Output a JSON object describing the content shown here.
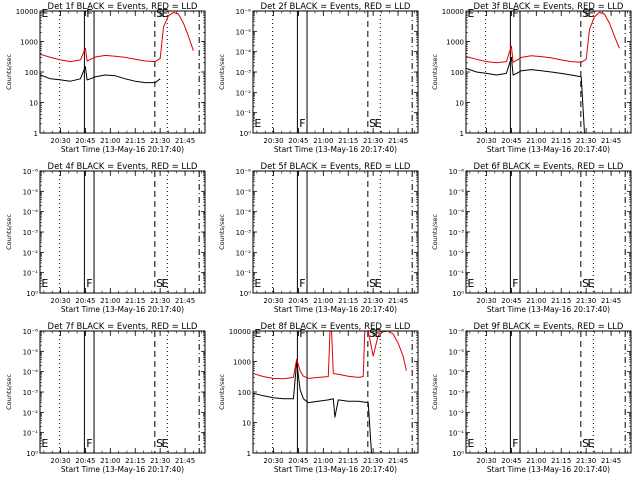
{
  "figure": {
    "background": "#ffffff",
    "series_colors": {
      "Events": "#000000",
      "LLD": "#e00000"
    }
  },
  "chart_data": [
    {
      "type": "line",
      "title": "Det 1f BLACK = Events, RED = LLD",
      "xlabel": "Start Time (13-May-16 20:17:40)",
      "ylabel": "Counts/sec",
      "xticks": [
        "20:30",
        "20:45",
        "21:00",
        "21:15",
        "21:30",
        "21:45"
      ],
      "yscale": "log",
      "ylim": [
        1,
        10000
      ],
      "yticks": [
        "1",
        "10",
        "100",
        "1000",
        "10000"
      ],
      "markers": [
        "E",
        "F",
        "S",
        "E"
      ],
      "series": [
        {
          "name": "Events",
          "x": [
            "20:18",
            "20:24",
            "20:30",
            "20:36",
            "20:42",
            "20:45",
            "20:46",
            "20:48",
            "20:51",
            "20:57",
            "21:03",
            "21:09",
            "21:15",
            "21:21",
            "21:27",
            "21:30"
          ],
          "values": [
            80,
            60,
            55,
            50,
            60,
            150,
            55,
            60,
            70,
            80,
            75,
            60,
            50,
            45,
            45,
            60
          ]
        },
        {
          "name": "LLD",
          "x": [
            "20:18",
            "20:24",
            "20:30",
            "20:36",
            "20:42",
            "20:45",
            "20:46",
            "20:48",
            "20:51",
            "20:57",
            "21:03",
            "21:09",
            "21:15",
            "21:21",
            "21:27",
            "21:30",
            "21:32",
            "21:35",
            "21:38",
            "21:41",
            "21:44",
            "21:47",
            "21:50"
          ],
          "values": [
            380,
            300,
            250,
            220,
            250,
            600,
            230,
            260,
            310,
            350,
            330,
            300,
            260,
            230,
            220,
            280,
            3000,
            7000,
            9000,
            8000,
            4000,
            1500,
            500
          ]
        }
      ]
    },
    {
      "type": "line",
      "title": "Det 2f BLACK = Events, RED = LLD",
      "xlabel": "Start Time (13-May-16 20:17:40)",
      "ylabel": "Counts/sec",
      "xticks": [
        "20:30",
        "20:45",
        "21:00",
        "21:15",
        "21:30",
        "21:45"
      ],
      "yscale": "log",
      "ylim": [
        1,
        1e-06
      ],
      "yticks": [
        "10⁰",
        "10⁻¹",
        "10⁻²",
        "10⁻³",
        "10⁻⁴",
        "10⁻⁵",
        "10⁻⁶"
      ],
      "markers": [
        "E",
        "F",
        "S",
        "E"
      ],
      "series": []
    },
    {
      "type": "line",
      "title": "Det 3f BLACK = Events, RED = LLD",
      "xlabel": "Start Time (13-May-16 20:17:40)",
      "ylabel": "Counts/sec",
      "xticks": [
        "20:30",
        "20:45",
        "21:00",
        "21:15",
        "21:30",
        "21:45"
      ],
      "yscale": "log",
      "ylim": [
        1,
        10000
      ],
      "yticks": [
        "1",
        "10",
        "100",
        "1000",
        "10000"
      ],
      "markers": [
        "E",
        "F",
        "S",
        "E"
      ],
      "series": [
        {
          "name": "Events",
          "x": [
            "20:18",
            "20:24",
            "20:30",
            "20:36",
            "20:42",
            "20:45",
            "20:46",
            "20:48",
            "20:51",
            "20:57",
            "21:03",
            "21:09",
            "21:15",
            "21:21",
            "21:27",
            "21:29"
          ],
          "values": [
            130,
            100,
            90,
            80,
            90,
            300,
            80,
            90,
            110,
            120,
            110,
            100,
            90,
            80,
            70,
            1
          ]
        },
        {
          "name": "LLD",
          "x": [
            "20:18",
            "20:24",
            "20:30",
            "20:36",
            "20:42",
            "20:45",
            "20:46",
            "20:48",
            "20:51",
            "20:57",
            "21:03",
            "21:09",
            "21:15",
            "21:21",
            "21:27",
            "21:30",
            "21:32",
            "21:35",
            "21:38",
            "21:41",
            "21:44",
            "21:47",
            "21:50"
          ],
          "values": [
            320,
            260,
            220,
            200,
            220,
            700,
            210,
            240,
            300,
            340,
            320,
            290,
            250,
            220,
            210,
            260,
            2500,
            6500,
            9000,
            8000,
            4000,
            1500,
            600
          ]
        }
      ]
    },
    {
      "type": "line",
      "title": "Det 4f BLACK = Events, RED = LLD",
      "xlabel": "Start Time (13-May-16 20:17:40)",
      "ylabel": "Counts/sec",
      "xticks": [
        "20:30",
        "20:45",
        "21:00",
        "21:15",
        "21:30",
        "21:45"
      ],
      "yscale": "log",
      "ylim": [
        1,
        1e-06
      ],
      "yticks": [
        "10⁰",
        "10⁻¹",
        "10⁻²",
        "10⁻³",
        "10⁻⁴",
        "10⁻⁵",
        "10⁻⁶"
      ],
      "markers": [
        "E",
        "F",
        "S",
        "E"
      ],
      "series": []
    },
    {
      "type": "line",
      "title": "Det 5f BLACK = Events, RED = LLD",
      "xlabel": "Start Time (13-May-16 20:17:40)",
      "ylabel": "Counts/sec",
      "xticks": [
        "20:30",
        "20:45",
        "21:00",
        "21:15",
        "21:30",
        "21:45"
      ],
      "yscale": "log",
      "ylim": [
        1,
        1e-06
      ],
      "yticks": [
        "10⁰",
        "10⁻¹",
        "10⁻²",
        "10⁻³",
        "10⁻⁴",
        "10⁻⁵",
        "10⁻⁶"
      ],
      "markers": [
        "E",
        "F",
        "S",
        "E"
      ],
      "series": []
    },
    {
      "type": "line",
      "title": "Det 6f BLACK = Events, RED = LLD",
      "xlabel": "Start Time (13-May-16 20:17:40)",
      "ylabel": "Counts/sec",
      "xticks": [
        "20:30",
        "20:45",
        "21:00",
        "21:15",
        "21:30",
        "21:45"
      ],
      "yscale": "log",
      "ylim": [
        1,
        1e-06
      ],
      "yticks": [
        "10⁰",
        "10⁻¹",
        "10⁻²",
        "10⁻³",
        "10⁻⁴",
        "10⁻⁵",
        "10⁻⁶"
      ],
      "markers": [
        "E",
        "F",
        "S",
        "E"
      ],
      "series": []
    },
    {
      "type": "line",
      "title": "Det 7f BLACK = Events, RED = LLD",
      "xlabel": "Start Time (13-May-16 20:17:40)",
      "ylabel": "Counts/sec",
      "xticks": [
        "20:30",
        "20:45",
        "21:00",
        "21:15",
        "21:30",
        "21:45"
      ],
      "yscale": "log",
      "ylim": [
        1,
        1e-06
      ],
      "yticks": [
        "10⁰",
        "10⁻¹",
        "10⁻²",
        "10⁻³",
        "10⁻⁴",
        "10⁻⁵",
        "10⁻⁶"
      ],
      "markers": [
        "E",
        "F",
        "S",
        "E"
      ],
      "series": []
    },
    {
      "type": "line",
      "title": "Det 8f BLACK = Events, RED = LLD",
      "xlabel": "Start Time (13-May-16 20:17:40)",
      "ylabel": "Counts/sec",
      "xticks": [
        "20:30",
        "20:45",
        "21:00",
        "21:15",
        "21:30",
        "21:45"
      ],
      "yscale": "log",
      "ylim": [
        1,
        10000
      ],
      "yticks": [
        "1",
        "10",
        "100",
        "1000",
        "10000"
      ],
      "markers": [
        "E",
        "F",
        "S",
        "E"
      ],
      "series": [
        {
          "name": "Events",
          "x": [
            "20:18",
            "20:24",
            "20:30",
            "20:36",
            "20:42",
            "20:44",
            "20:46",
            "20:48",
            "20:51",
            "20:57",
            "21:03",
            "21:06",
            "21:07",
            "21:09",
            "21:15",
            "21:21",
            "21:27",
            "21:29"
          ],
          "values": [
            90,
            75,
            65,
            60,
            60,
            1000,
            120,
            60,
            45,
            50,
            55,
            60,
            15,
            55,
            50,
            50,
            45,
            1
          ]
        },
        {
          "name": "LLD",
          "x": [
            "20:18",
            "20:24",
            "20:30",
            "20:36",
            "20:42",
            "20:44",
            "20:46",
            "20:48",
            "20:51",
            "20:57",
            "21:03",
            "21:04",
            "21:05",
            "21:06",
            "21:09",
            "21:15",
            "21:21",
            "21:24",
            "21:25",
            "21:27",
            "21:30",
            "21:33",
            "21:36",
            "21:39",
            "21:42",
            "21:45",
            "21:48",
            "21:50"
          ],
          "values": [
            400,
            320,
            280,
            270,
            300,
            1200,
            500,
            330,
            280,
            300,
            320,
            10000,
            10000,
            400,
            380,
            330,
            300,
            320,
            10000,
            10000,
            1500,
            7000,
            9500,
            10000,
            8000,
            4000,
            1500,
            500
          ]
        }
      ]
    },
    {
      "type": "line",
      "title": "Det 9f BLACK = Events, RED = LLD",
      "xlabel": "Start Time (13-May-16 20:17:40)",
      "ylabel": "Counts/sec",
      "xticks": [
        "20:30",
        "20:45",
        "21:00",
        "21:15",
        "21:30",
        "21:45"
      ],
      "yscale": "log",
      "ylim": [
        1,
        1e-06
      ],
      "yticks": [
        "10⁰",
        "10⁻¹",
        "10⁻²",
        "10⁻³",
        "10⁻⁴",
        "10⁻⁵",
        "10⁻⁶"
      ],
      "markers": [
        "E",
        "F",
        "S",
        "E"
      ],
      "series": []
    }
  ]
}
